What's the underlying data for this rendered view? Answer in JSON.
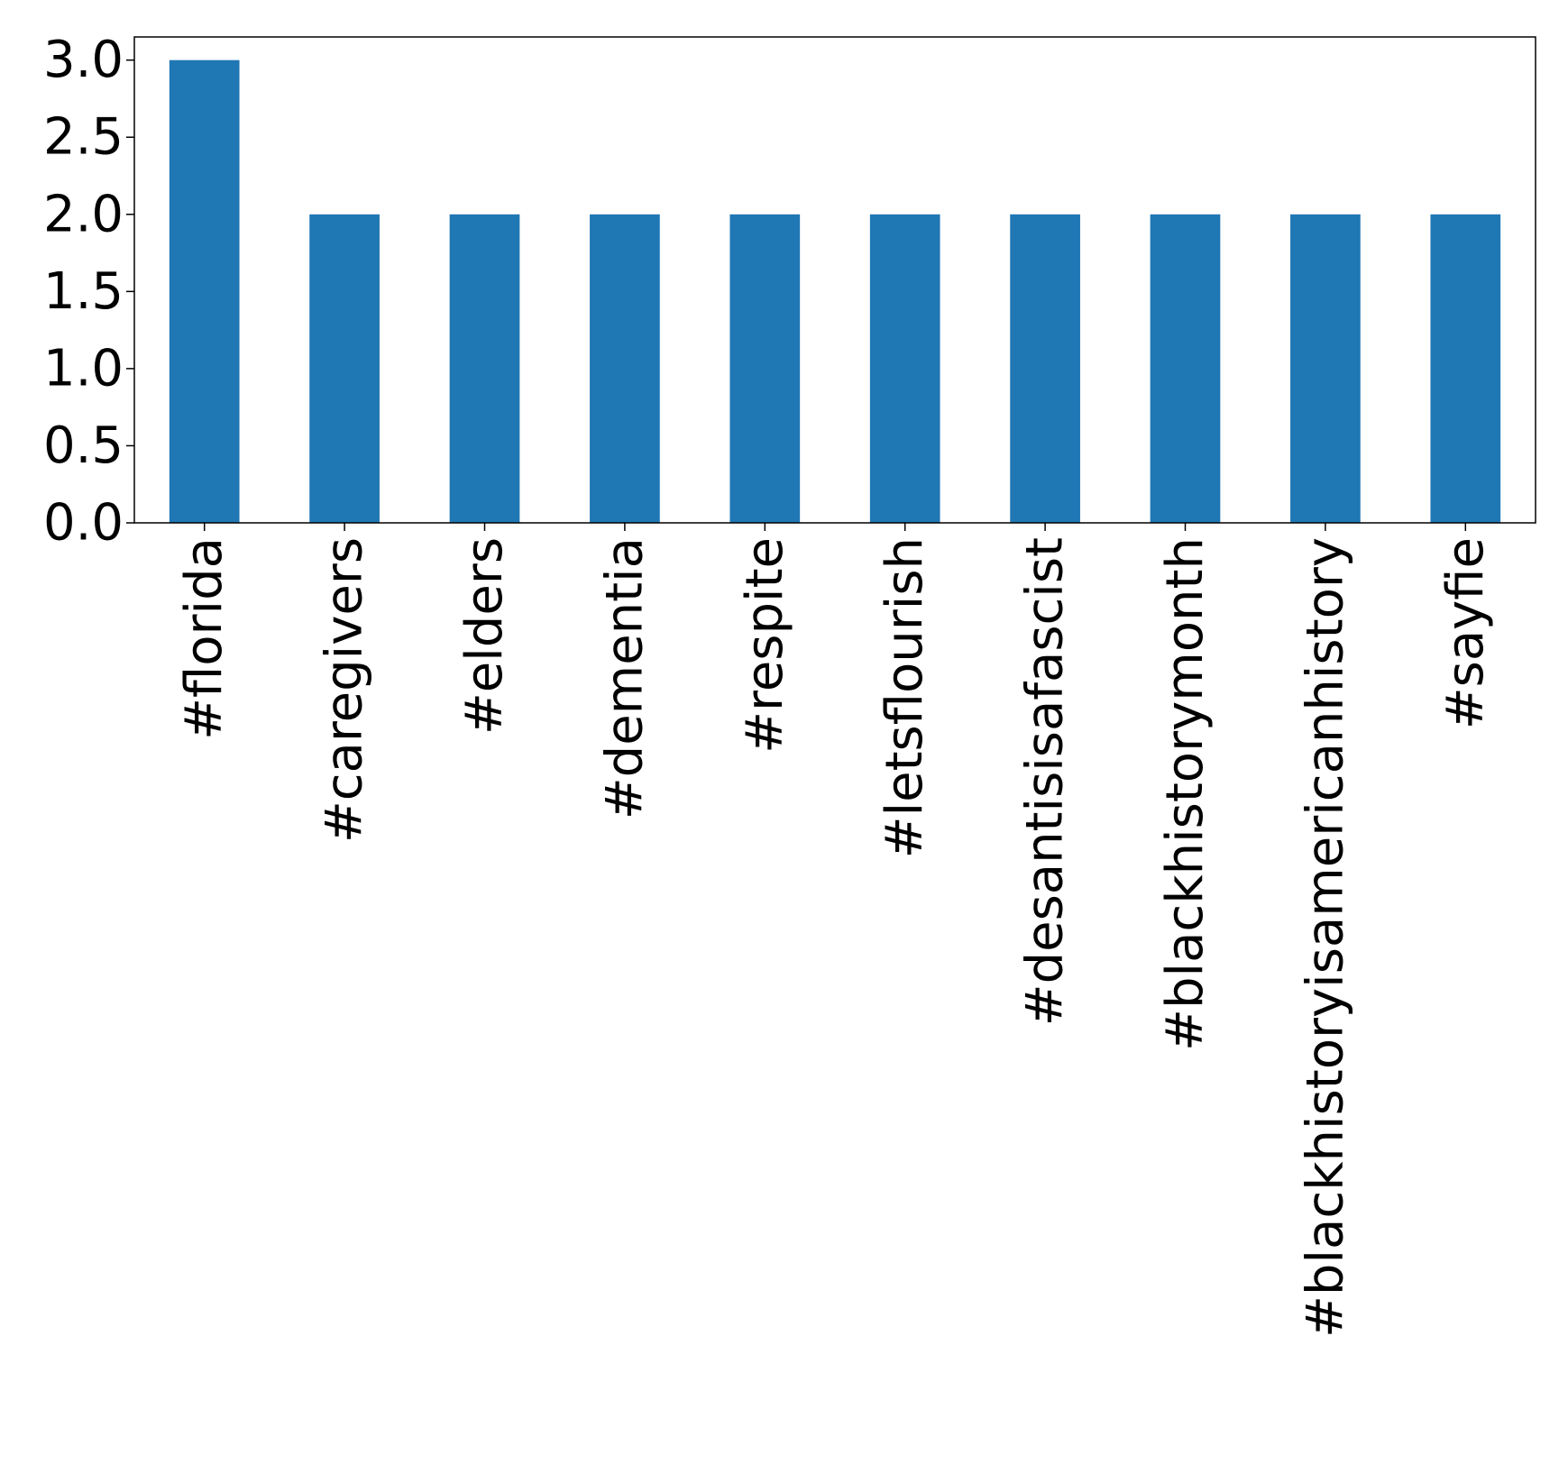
{
  "chart_data": {
    "type": "bar",
    "categories": [
      "#florida",
      "#caregivers",
      "#elders",
      "#dementia",
      "#respite",
      "#letsflourish",
      "#desantisisafascist",
      "#blackhistorymonth",
      "#blackhistoryisamericanhistory",
      "#sayfie"
    ],
    "values": [
      3,
      2,
      2,
      2,
      2,
      2,
      2,
      2,
      2,
      2
    ],
    "title": "",
    "xlabel": "",
    "ylabel": "",
    "ylim": [
      0,
      3.15
    ],
    "yticks": [
      "0.0",
      "0.5",
      "1.0",
      "1.5",
      "2.0",
      "2.5",
      "3.0"
    ],
    "grid": false,
    "legend": "none",
    "bar_color": "#1f77b4"
  }
}
